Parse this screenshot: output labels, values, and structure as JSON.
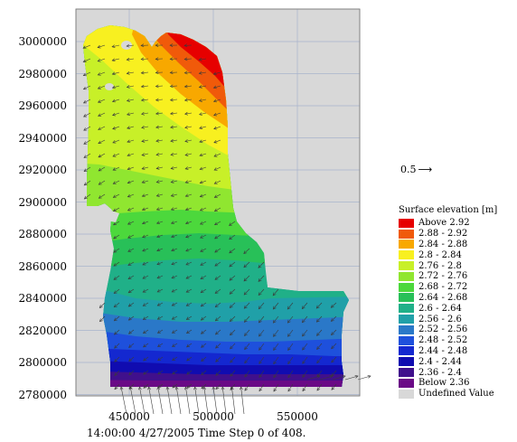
{
  "map": {
    "y_ticks": [
      "3000000",
      "2980000",
      "2960000",
      "2940000",
      "2920000",
      "2900000",
      "2880000",
      "2860000",
      "2840000",
      "2820000",
      "2800000",
      "2780000"
    ],
    "x_ticks": [
      "450000",
      "500000",
      "550000"
    ],
    "caption": "14:00:00 4/27/2005  Time Step 0 of 408.",
    "vector_scale_label": "0.5",
    "vector_scale_icon": "right-arrow-icon",
    "background_color": "#d8d8d8",
    "grid_color": "#a8b4cc",
    "arrow_color": "#3a3a3a"
  },
  "legend": {
    "title": "Surface elevation [m]",
    "items": [
      {
        "label": "Above 2.92",
        "color": "#e60000"
      },
      {
        "label": "2.88 - 2.92",
        "color": "#f05a0a"
      },
      {
        "label": "2.84 - 2.88",
        "color": "#f8a800"
      },
      {
        "label": "2.8 - 2.84",
        "color": "#f8f020"
      },
      {
        "label": "2.76 - 2.8",
        "color": "#c8f028"
      },
      {
        "label": "2.72 - 2.76",
        "color": "#90e630"
      },
      {
        "label": "2.68 - 2.72",
        "color": "#4cd83c"
      },
      {
        "label": "2.64 - 2.68",
        "color": "#28c058"
      },
      {
        "label": "2.6 - 2.64",
        "color": "#20b088"
      },
      {
        "label": "2.56 - 2.6",
        "color": "#20a0a8"
      },
      {
        "label": "2.52 - 2.56",
        "color": "#2a78c8"
      },
      {
        "label": "2.48 - 2.52",
        "color": "#1e50dc"
      },
      {
        "label": "2.44 - 2.48",
        "color": "#1428d0"
      },
      {
        "label": "2.4 - 2.44",
        "color": "#100cb0"
      },
      {
        "label": "2.36 - 2.4",
        "color": "#40108c"
      },
      {
        "label": "Below 2.36",
        "color": "#6a0a86"
      },
      {
        "label": "Undefined Value",
        "color": "#d8d8d8"
      }
    ]
  }
}
